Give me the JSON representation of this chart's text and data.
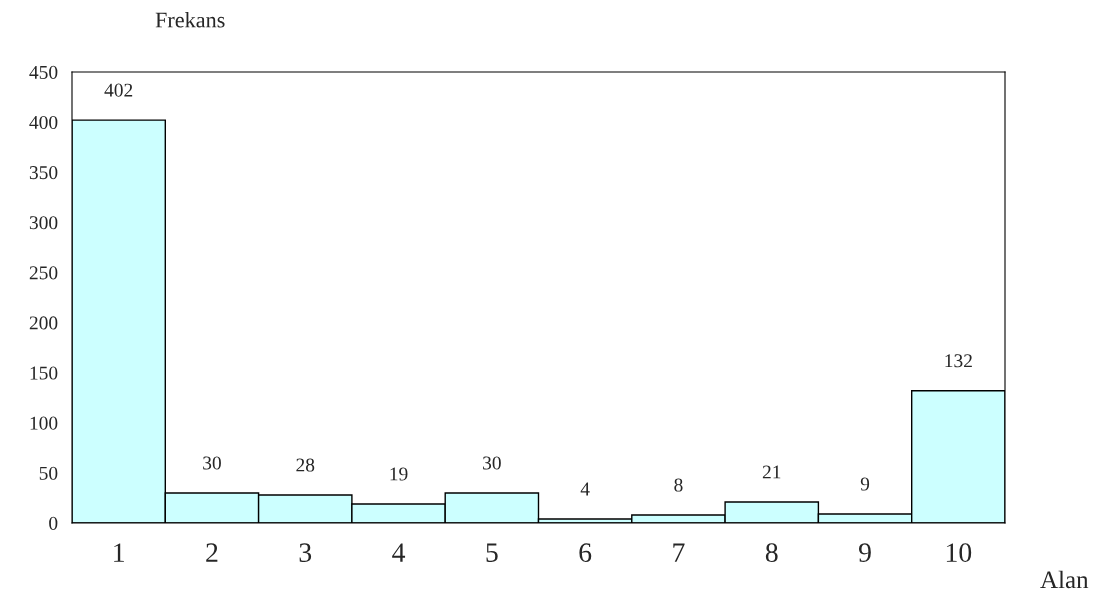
{
  "chart_data": {
    "type": "bar",
    "ylabel": "Frekans",
    "xlabel": "Alan",
    "categories": [
      "1",
      "2",
      "3",
      "4",
      "5",
      "6",
      "7",
      "8",
      "9",
      "10"
    ],
    "values": [
      402,
      30,
      28,
      19,
      30,
      4,
      8,
      21,
      9,
      132
    ],
    "color": "#ccffff",
    "ylim": [
      0,
      450
    ],
    "yticks": [
      0,
      50,
      100,
      150,
      200,
      250,
      300,
      350,
      400,
      450
    ],
    "data_labels": true,
    "grid": false,
    "legend": false
  }
}
